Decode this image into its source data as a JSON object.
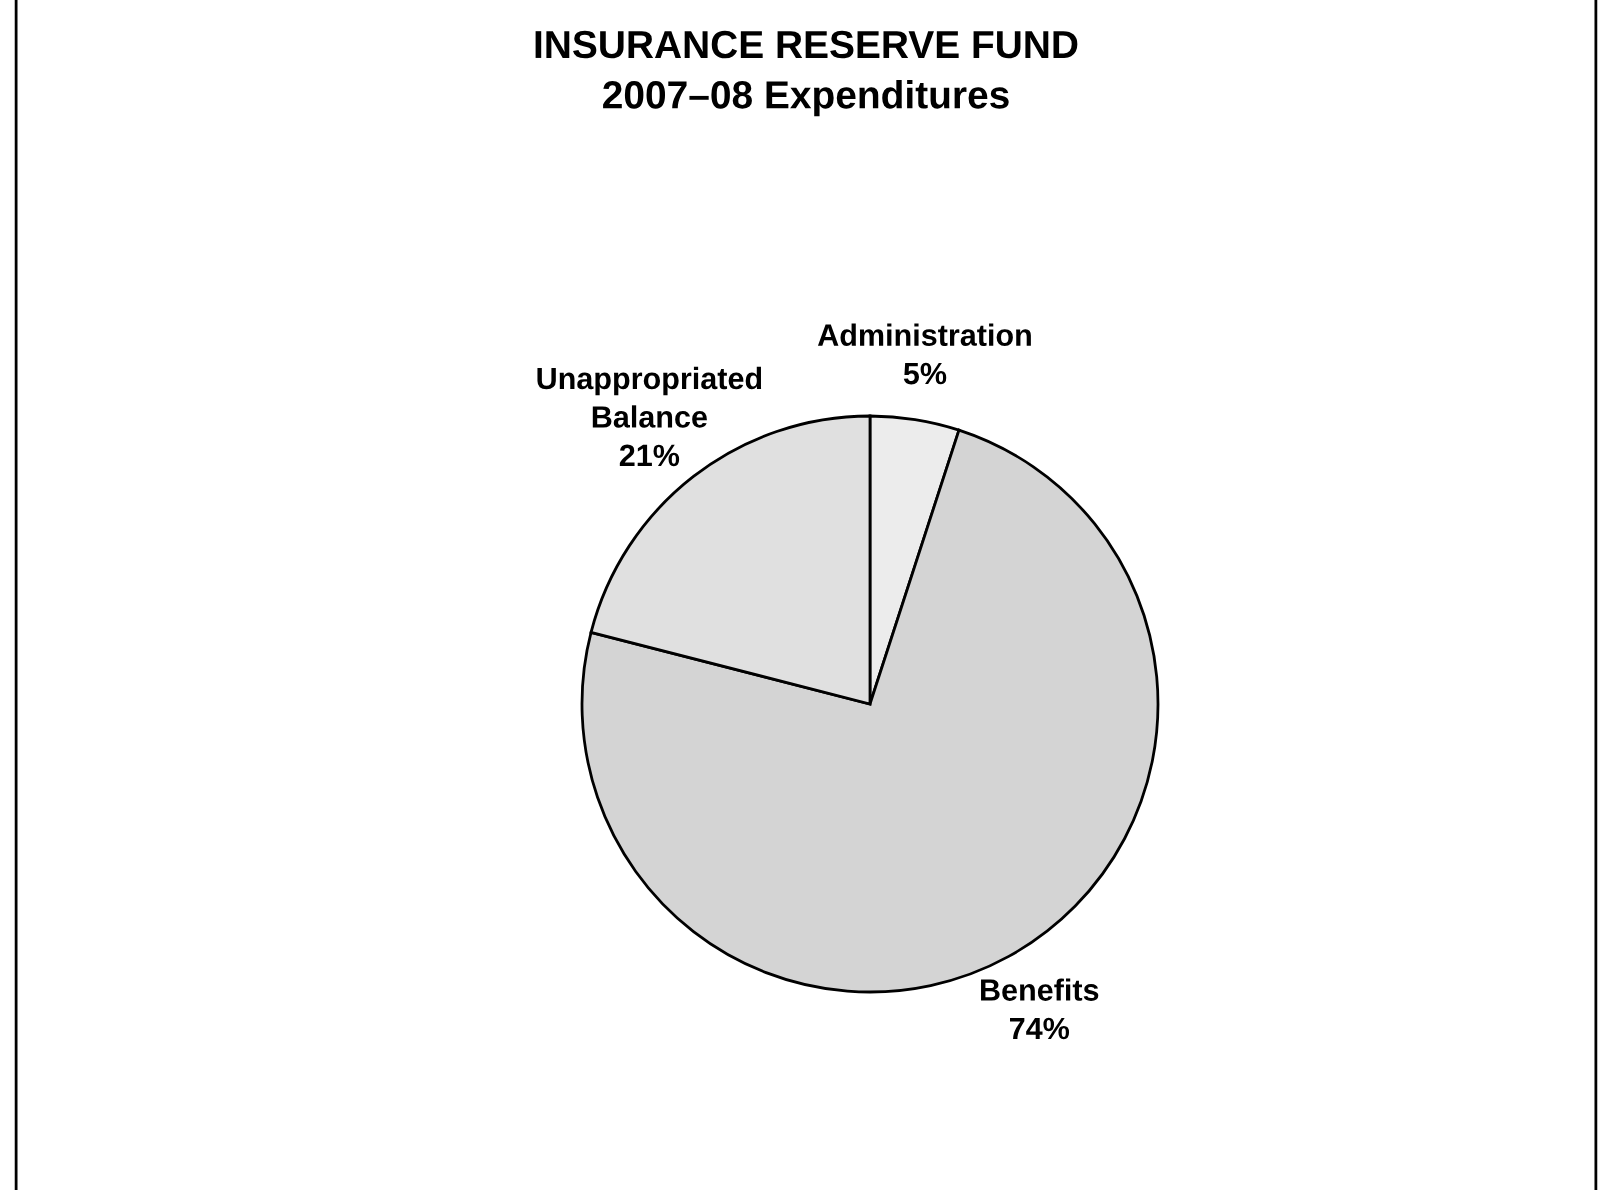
{
  "chart_data": {
    "type": "pie",
    "title": "INSURANCE RESERVE FUND\n2007–08 Expenditures",
    "categories": [
      "Administration",
      "Benefits",
      "Unappropriated\nBalance"
    ],
    "values": [
      5,
      74,
      21
    ],
    "colors": [
      "#ececec",
      "#d4d4d4",
      "#e0e0e0"
    ],
    "value_labels": [
      "5%",
      "74%",
      "21%"
    ],
    "legend": false
  }
}
